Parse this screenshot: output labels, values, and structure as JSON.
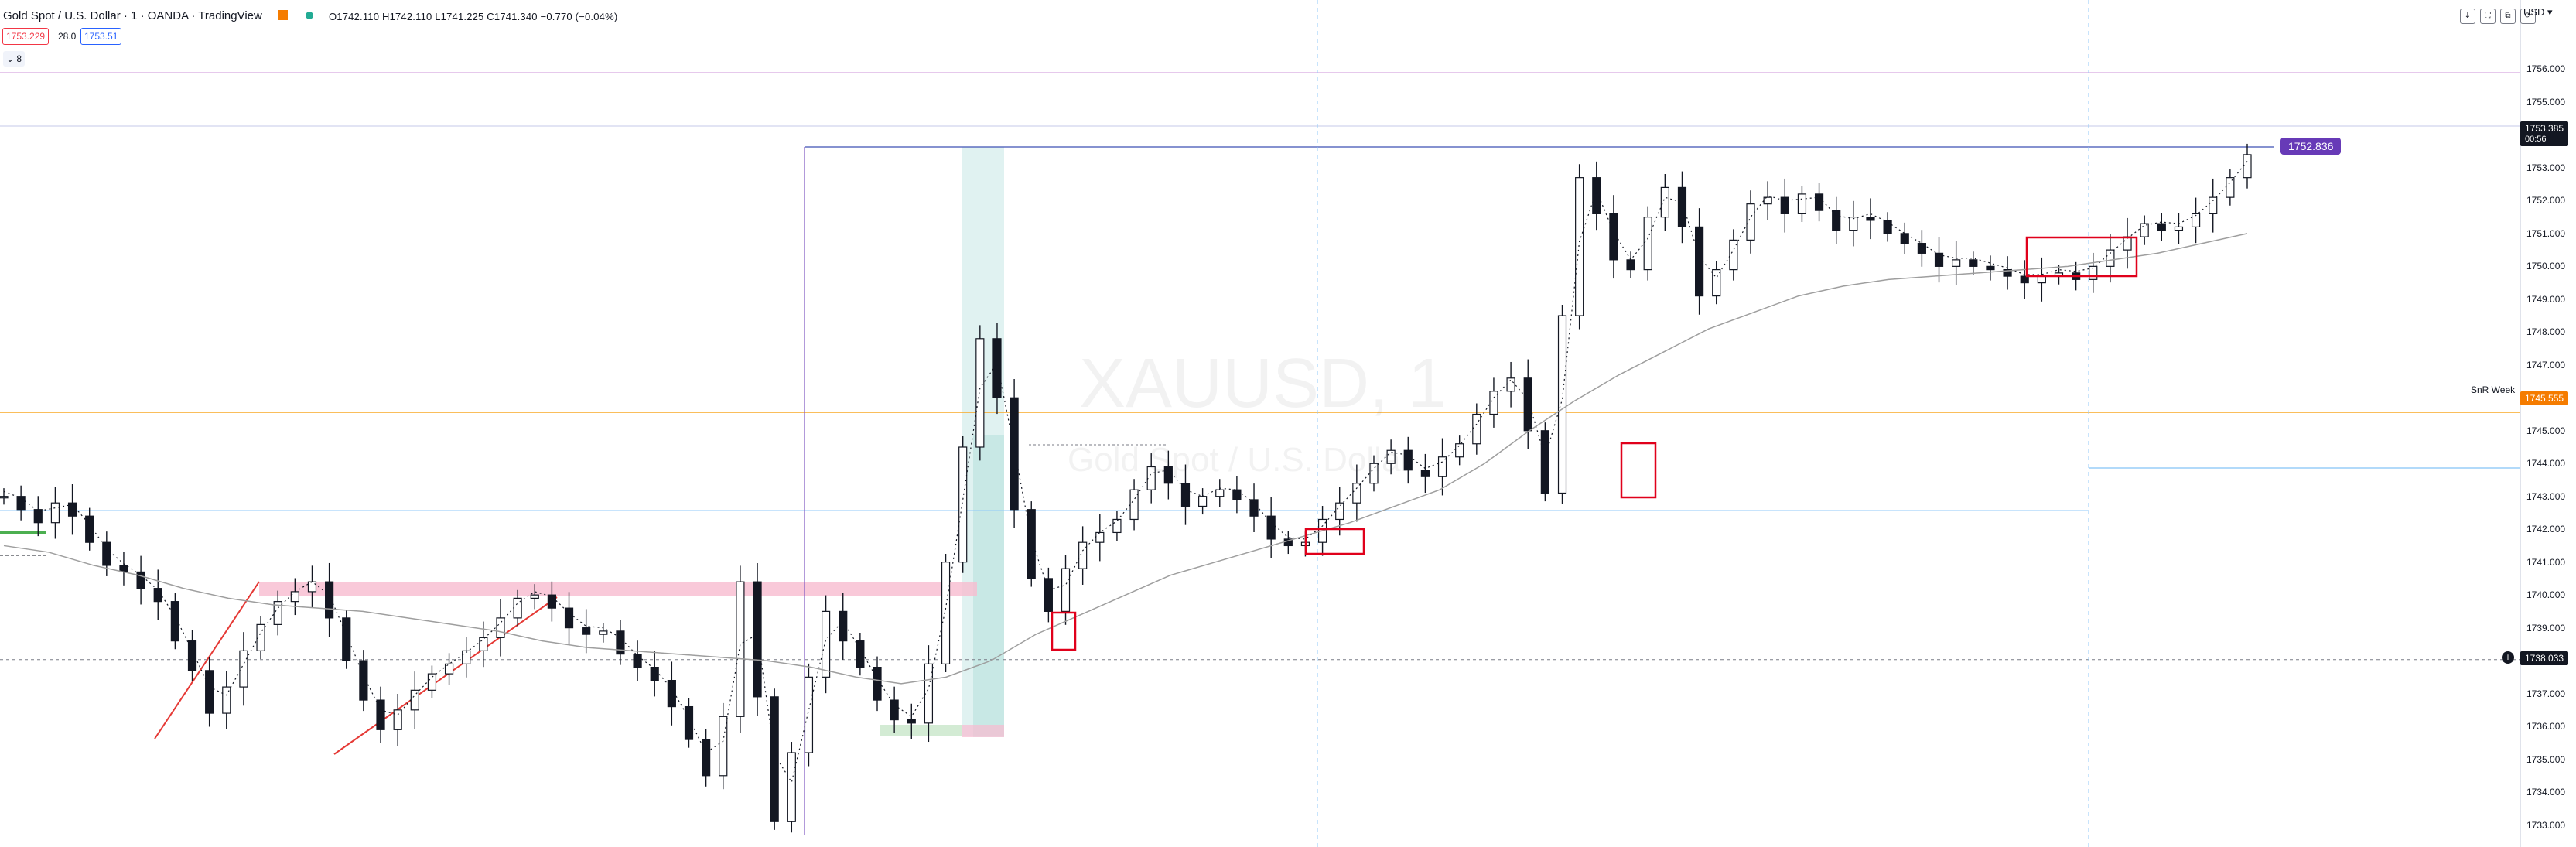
{
  "header": {
    "title": "Gold Spot / U.S. Dollar · 1 · OANDA · TradingView",
    "ohlc": "O1742.110 H1742.110 L1741.225 C1741.340 −0.770 (−0.04%)",
    "sell_price": "1753.229",
    "spread": "28.0",
    "buy_price": "1753.51",
    "indicator_toggle": "⌄ 8",
    "currency": "USD ▾",
    "scale_buttons": [
      "↓",
      "⛶",
      "⧉",
      "⟳"
    ]
  },
  "watermark": {
    "symbol": "XAUUSD, 1",
    "description": "Gold Spot / U.S. Dollar"
  },
  "price_axis": {
    "ticks": [
      "1756.000",
      "1755.000",
      "1754.000",
      "1753.000",
      "1752.000",
      "1751.000",
      "1750.000",
      "1749.000",
      "1748.000",
      "1747.000",
      "1746.000",
      "1745.000",
      "1744.000",
      "1743.000",
      "1742.000",
      "1741.000",
      "1740.000",
      "1739.000",
      "1737.000",
      "1736.000",
      "1735.000",
      "1734.000",
      "1733.000"
    ],
    "current_price": "1753.385",
    "countdown": "00:56",
    "position_label": "1752.836",
    "snr_label": "SnR Week",
    "snr_price": "1745.555",
    "crosshair_price": "1738.033"
  },
  "colors": {
    "up_candle": "#ffffff",
    "down_candle": "#131722",
    "accent_blue": "#2962ff",
    "snr_orange": "#f57c00",
    "position_purple": "#673ab7",
    "box_red": "#e0001b"
  },
  "chart_data": {
    "type": "candlestick",
    "title": "",
    "instrument": "XAUUSD",
    "timeframe": "1",
    "ylim": [
      1732.8,
      1757.0
    ],
    "key_levels": {
      "snr_week": 1745.555,
      "position_entry": 1752.836,
      "current": 1753.385,
      "crosshair": 1738.033
    },
    "close_path": [
      1743.0,
      1742.6,
      1742.2,
      1742.8,
      1742.4,
      1741.6,
      1740.9,
      1740.7,
      1740.2,
      1739.8,
      1738.6,
      1737.7,
      1736.4,
      1737.2,
      1738.3,
      1739.1,
      1739.8,
      1740.1,
      1740.4,
      1739.3,
      1738.0,
      1736.8,
      1735.9,
      1736.5,
      1737.1,
      1737.6,
      1737.9,
      1738.3,
      1738.7,
      1739.3,
      1739.9,
      1740.0,
      1739.6,
      1739.0,
      1738.8,
      1738.9,
      1738.2,
      1737.8,
      1737.4,
      1736.6,
      1735.6,
      1734.5,
      1736.3,
      1740.4,
      1736.9,
      1733.1,
      1735.2,
      1737.5,
      1739.5,
      1738.6,
      1737.8,
      1736.8,
      1736.2,
      1736.1,
      1737.9,
      1741.0,
      1744.5,
      1747.8,
      1746.0,
      1742.6,
      1740.5,
      1739.5,
      1740.8,
      1741.6,
      1741.9,
      1742.3,
      1743.2,
      1743.9,
      1743.4,
      1742.7,
      1743.0,
      1743.2,
      1742.9,
      1742.4,
      1741.7,
      1741.5,
      1741.6,
      1742.3,
      1742.8,
      1743.4,
      1744.0,
      1744.4,
      1743.8,
      1743.6,
      1744.2,
      1744.6,
      1745.5,
      1746.2,
      1746.6,
      1745.0,
      1743.1,
      1748.5,
      1752.7,
      1751.6,
      1750.2,
      1749.9,
      1751.5,
      1752.4,
      1751.2,
      1749.1,
      1749.9,
      1750.8,
      1751.9,
      1752.1,
      1751.6,
      1752.2,
      1751.7,
      1751.1,
      1751.5,
      1751.4,
      1751.0,
      1750.7,
      1750.4,
      1750.0,
      1750.2,
      1750.0,
      1749.9,
      1749.7,
      1749.5,
      1749.7,
      1749.8,
      1749.6,
      1750.0,
      1750.5,
      1750.9,
      1751.3,
      1751.1,
      1751.2,
      1751.6,
      1752.1,
      1752.7,
      1753.4
    ],
    "moving_average": [
      1741.5,
      1741.3,
      1740.9,
      1740.6,
      1740.2,
      1739.9,
      1739.7,
      1739.6,
      1739.5,
      1739.3,
      1739.1,
      1738.9,
      1738.6,
      1738.4,
      1738.3,
      1738.2,
      1738.1,
      1738.0,
      1737.8,
      1737.5,
      1737.3,
      1737.5,
      1738.0,
      1738.8,
      1739.4,
      1740.0,
      1740.6,
      1741.0,
      1741.4,
      1741.8,
      1742.2,
      1742.7,
      1743.2,
      1744.0,
      1745.0,
      1745.9,
      1746.7,
      1747.4,
      1748.1,
      1748.6,
      1749.1,
      1749.4,
      1749.6,
      1749.7,
      1749.8,
      1749.9,
      1750.0,
      1750.2,
      1750.4,
      1750.7,
      1751.0
    ],
    "annotations": [
      {
        "type": "rectangle",
        "label": "",
        "from_price": 1741.2,
        "to_price": 1740.8,
        "color": "pink"
      },
      {
        "type": "horizontal_line",
        "price": 1745.555,
        "label": "SnR Week"
      },
      {
        "type": "long_position",
        "entry": 1752.836
      }
    ]
  }
}
